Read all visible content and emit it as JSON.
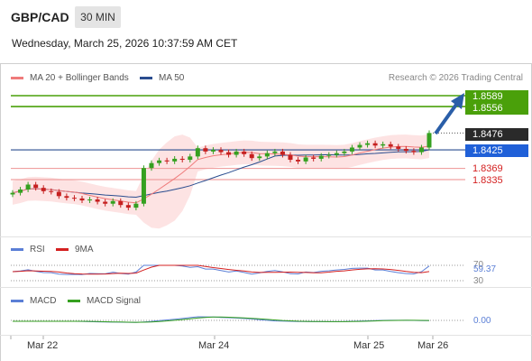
{
  "header": {
    "pair": "GBP/CAD",
    "timeframe": "30 MIN",
    "datetime": "Wednesday, March 25, 2026 10:37:59 AM CET"
  },
  "legend": {
    "ma20": "MA 20 + Bollinger Bands",
    "ma50": "MA 50",
    "copyright": "Research © 2026 Trading Central",
    "ma20_color": "#ef7b7b",
    "ma50_color": "#2a4d8f"
  },
  "levels": {
    "r2": "1.8589",
    "r1": "1.8556",
    "last": "1.8476",
    "pivot": "1.8425",
    "s1": "1.8369",
    "s2": "1.8335"
  },
  "rsi": {
    "label": "RSI",
    "ma_label": "9MA",
    "value": "59.37",
    "upper": "70",
    "lower": "30",
    "rsi_color": "#5b7fd6",
    "ma_color": "#d42020"
  },
  "macd": {
    "label": "MACD",
    "signal_label": "MACD Signal",
    "value": "0.00",
    "macd_color": "#5b7fd6",
    "signal_color": "#35a020"
  },
  "xaxis": [
    "Mar 22",
    "Mar 24",
    "Mar 25",
    "Mar 26"
  ],
  "colors": {
    "up": "#35a020",
    "down": "#c62020",
    "band_fill": "#fde3e3"
  },
  "chart_data": {
    "type": "candlestick",
    "series": [
      {
        "name": "MA 20 + Bollinger Bands"
      },
      {
        "name": "MA 50"
      }
    ],
    "closes": [
      1.8295,
      1.8305,
      1.832,
      1.831,
      1.83,
      1.8298,
      1.8285,
      1.828,
      1.8278,
      1.8272,
      1.8275,
      1.8268,
      1.8262,
      1.827,
      1.8258,
      1.825,
      1.8262,
      1.837,
      1.8385,
      1.8393,
      1.839,
      1.8398,
      1.8395,
      1.8405,
      1.843,
      1.842,
      1.8425,
      1.8418,
      1.841,
      1.842,
      1.8412,
      1.84,
      1.8405,
      1.8415,
      1.842,
      1.841,
      1.8395,
      1.839,
      1.8402,
      1.8398,
      1.8407,
      1.841,
      1.8415,
      1.842,
      1.8432,
      1.844,
      1.8445,
      1.8438,
      1.8442,
      1.8435,
      1.8428,
      1.8422,
      1.8418,
      1.8432,
      1.8476
    ],
    "x_ticks": [
      "Mar 22",
      "Mar 24",
      "Mar 25",
      "Mar 26"
    ],
    "horizontal_levels": [
      1.8589,
      1.8556,
      1.8476,
      1.8425,
      1.8369,
      1.8335
    ]
  }
}
